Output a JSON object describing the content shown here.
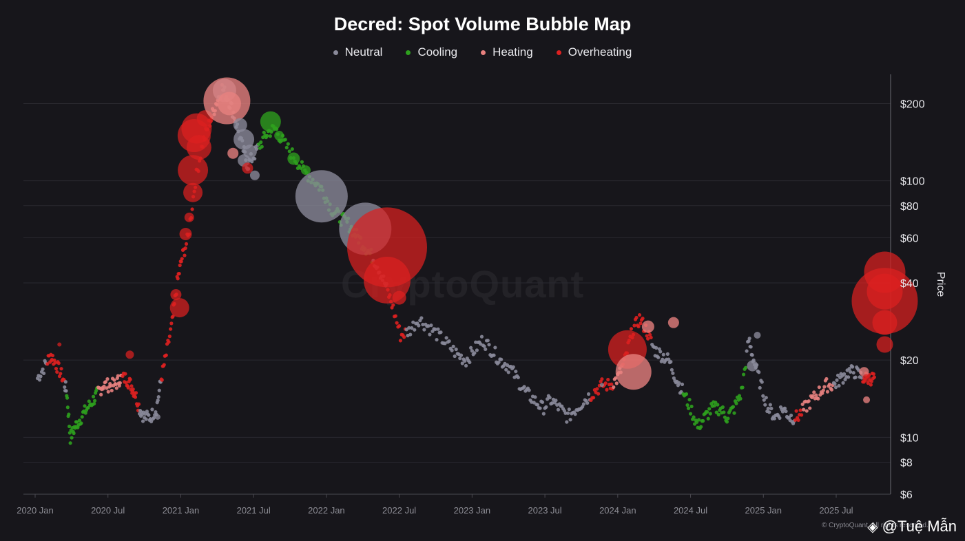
{
  "chart_data": {
    "type": "scatter",
    "title": "Decred: Spot Volume Bubble Map",
    "ylabel": "Price",
    "xlabel": "",
    "yscale": "log",
    "ylim": [
      6,
      260
    ],
    "xlim": [
      0,
      70.3
    ],
    "x_unit": "months since 2020 Jan",
    "y_ticks": [
      {
        "value": 6,
        "label": "$6"
      },
      {
        "value": 8,
        "label": "$8"
      },
      {
        "value": 10,
        "label": "$10"
      },
      {
        "value": 20,
        "label": "$20"
      },
      {
        "value": 40,
        "label": "$40"
      },
      {
        "value": 60,
        "label": "$60"
      },
      {
        "value": 80,
        "label": "$80"
      },
      {
        "value": 100,
        "label": "$100"
      },
      {
        "value": 200,
        "label": "$200"
      }
    ],
    "x_ticks": [
      {
        "value": 0,
        "label": "2020 Jan"
      },
      {
        "value": 6,
        "label": "2020 Jul"
      },
      {
        "value": 12,
        "label": "2021 Jan"
      },
      {
        "value": 18,
        "label": "2021 Jul"
      },
      {
        "value": 24,
        "label": "2022 Jan"
      },
      {
        "value": 30,
        "label": "2022 Jul"
      },
      {
        "value": 36,
        "label": "2023 Jan"
      },
      {
        "value": 42,
        "label": "2023 Jul"
      },
      {
        "value": 48,
        "label": "2024 Jan"
      },
      {
        "value": 54,
        "label": "2024 Jul"
      },
      {
        "value": 60,
        "label": "2025 Jan"
      },
      {
        "value": 66,
        "label": "2025 Jul"
      }
    ],
    "legend": [
      {
        "name": "Neutral",
        "color": "#8a8a9a"
      },
      {
        "name": "Cooling",
        "color": "#2ea01e"
      },
      {
        "name": "Heating",
        "color": "#e8817f"
      },
      {
        "name": "Overheating",
        "color": "#dd2020"
      }
    ],
    "series": [
      {
        "name": "price_path",
        "points": [
          [
            0.2,
            17
          ],
          [
            0.8,
            19
          ],
          [
            1.3,
            21
          ],
          [
            1.8,
            19
          ],
          [
            2.3,
            17
          ],
          [
            2.6,
            15
          ],
          [
            2.9,
            10
          ],
          [
            3.3,
            11
          ],
          [
            3.8,
            12
          ],
          [
            4.3,
            13
          ],
          [
            4.8,
            14
          ],
          [
            5.2,
            15
          ],
          [
            5.6,
            16
          ],
          [
            6.1,
            16
          ],
          [
            6.6,
            16
          ],
          [
            7.0,
            17
          ],
          [
            7.5,
            17
          ],
          [
            7.9,
            16
          ],
          [
            8.2,
            15
          ],
          [
            8.6,
            13
          ],
          [
            9.0,
            12
          ],
          [
            9.5,
            12
          ],
          [
            10.0,
            13
          ],
          [
            10.4,
            17
          ],
          [
            10.8,
            21
          ],
          [
            11.3,
            28
          ],
          [
            11.7,
            40
          ],
          [
            12.1,
            50
          ],
          [
            12.6,
            60
          ],
          [
            13.2,
            100
          ],
          [
            13.8,
            140
          ],
          [
            14.4,
            170
          ],
          [
            14.9,
            200
          ],
          [
            15.4,
            230
          ],
          [
            15.9,
            210
          ],
          [
            16.4,
            180
          ],
          [
            17.0,
            140
          ],
          [
            17.5,
            115
          ],
          [
            18.0,
            125
          ],
          [
            18.6,
            140
          ],
          [
            19.2,
            155
          ],
          [
            19.8,
            160
          ],
          [
            20.5,
            140
          ],
          [
            21.3,
            125
          ],
          [
            22.1,
            110
          ],
          [
            23.0,
            100
          ],
          [
            23.7,
            92
          ],
          [
            24.4,
            78
          ],
          [
            25.1,
            72
          ],
          [
            25.8,
            68
          ],
          [
            26.4,
            62
          ],
          [
            27.0,
            57
          ],
          [
            27.6,
            52
          ],
          [
            28.2,
            47
          ],
          [
            28.8,
            40
          ],
          [
            29.4,
            33
          ],
          [
            30.1,
            25
          ],
          [
            30.8,
            26
          ],
          [
            31.6,
            29
          ],
          [
            32.4,
            27
          ],
          [
            33.2,
            25
          ],
          [
            34.0,
            23
          ],
          [
            34.8,
            21
          ],
          [
            35.5,
            20
          ],
          [
            36.2,
            22
          ],
          [
            36.9,
            24
          ],
          [
            37.6,
            22
          ],
          [
            38.3,
            20
          ],
          [
            39.0,
            19
          ],
          [
            39.7,
            17
          ],
          [
            40.4,
            15
          ],
          [
            41.1,
            14
          ],
          [
            41.8,
            13
          ],
          [
            42.5,
            14
          ],
          [
            43.2,
            13
          ],
          [
            43.9,
            12
          ],
          [
            44.6,
            13
          ],
          [
            45.3,
            14
          ],
          [
            46.0,
            15
          ],
          [
            46.7,
            16
          ],
          [
            47.4,
            16
          ],
          [
            48.0,
            17
          ],
          [
            48.6,
            20
          ],
          [
            49.2,
            26
          ],
          [
            49.8,
            29
          ],
          [
            50.4,
            26
          ],
          [
            51.0,
            22
          ],
          [
            51.6,
            21
          ],
          [
            52.2,
            20
          ],
          [
            52.8,
            17
          ],
          [
            53.4,
            15
          ],
          [
            54.0,
            13
          ],
          [
            54.6,
            11
          ],
          [
            55.2,
            12
          ],
          [
            55.8,
            13
          ],
          [
            56.4,
            13
          ],
          [
            57.0,
            12
          ],
          [
            57.6,
            13
          ],
          [
            58.2,
            15
          ],
          [
            58.8,
            24
          ],
          [
            59.2,
            20
          ],
          [
            59.8,
            16
          ],
          [
            60.4,
            13
          ],
          [
            61.0,
            12
          ],
          [
            61.6,
            13
          ],
          [
            62.2,
            12
          ],
          [
            62.8,
            12
          ],
          [
            63.4,
            13
          ],
          [
            64.0,
            14
          ],
          [
            64.6,
            15
          ],
          [
            65.2,
            16
          ],
          [
            65.8,
            16
          ],
          [
            66.4,
            17
          ],
          [
            67.0,
            18
          ],
          [
            67.6,
            18
          ],
          [
            68.2,
            17
          ],
          [
            68.8,
            17
          ],
          [
            69.2,
            17
          ]
        ]
      },
      {
        "name": "bubbles",
        "points": [
          [
            13.0,
            110,
            3,
            22
          ],
          [
            13.1,
            150,
            3,
            24
          ],
          [
            13.3,
            160,
            3,
            22
          ],
          [
            13.5,
            135,
            3,
            18
          ],
          [
            13.0,
            90,
            3,
            14
          ],
          [
            14.0,
            175,
            3,
            12
          ],
          [
            11.9,
            32,
            3,
            14
          ],
          [
            12.4,
            62,
            3,
            9
          ],
          [
            12.7,
            72,
            3,
            7
          ],
          [
            11.6,
            36,
            3,
            8
          ],
          [
            15.6,
            225,
            0,
            17
          ],
          [
            15.8,
            205,
            2,
            34
          ],
          [
            16.0,
            200,
            2,
            17
          ],
          [
            16.9,
            165,
            0,
            10
          ],
          [
            17.2,
            145,
            0,
            15
          ],
          [
            17.7,
            130,
            0,
            10
          ],
          [
            17.2,
            120,
            0,
            9
          ],
          [
            17.5,
            112,
            3,
            8
          ],
          [
            18.1,
            105,
            0,
            7
          ],
          [
            16.3,
            128,
            2,
            8
          ],
          [
            19.4,
            170,
            1,
            15
          ],
          [
            20.1,
            150,
            1,
            7
          ],
          [
            21.3,
            122,
            1,
            9
          ],
          [
            22.3,
            110,
            1,
            7
          ],
          [
            23.6,
            87,
            0,
            38
          ],
          [
            27.2,
            65,
            0,
            38
          ],
          [
            29.0,
            55,
            3,
            58
          ],
          [
            29.0,
            41,
            3,
            34
          ],
          [
            30.0,
            35,
            3,
            10
          ],
          [
            48.8,
            22,
            3,
            28
          ],
          [
            49.3,
            18,
            2,
            26
          ],
          [
            50.5,
            27,
            2,
            9
          ],
          [
            52.6,
            28,
            2,
            8
          ],
          [
            59.1,
            19,
            0,
            8
          ],
          [
            59.5,
            25,
            0,
            5
          ],
          [
            68.3,
            18,
            2,
            7
          ],
          [
            68.5,
            17,
            3,
            6
          ],
          [
            68.5,
            14,
            2,
            5
          ],
          [
            70.0,
            44,
            3,
            30
          ],
          [
            70.0,
            37,
            3,
            26
          ],
          [
            70.0,
            34,
            3,
            48
          ],
          [
            70.0,
            28,
            3,
            18
          ],
          [
            70.0,
            23,
            3,
            12
          ],
          [
            7.8,
            21,
            3,
            6
          ],
          [
            2.0,
            23,
            3,
            3
          ],
          [
            1.4,
            20,
            3,
            3
          ],
          [
            3.4,
            11,
            1,
            3
          ],
          [
            10.1,
            12,
            0,
            4
          ],
          [
            46.7,
            16,
            0,
            3
          ]
        ]
      }
    ]
  },
  "watermark": {
    "handle": "@Tuệ Mẫn",
    "copyright": "© CryptoQuant. All rights reserved.",
    "brand": "CryptoQuant"
  }
}
